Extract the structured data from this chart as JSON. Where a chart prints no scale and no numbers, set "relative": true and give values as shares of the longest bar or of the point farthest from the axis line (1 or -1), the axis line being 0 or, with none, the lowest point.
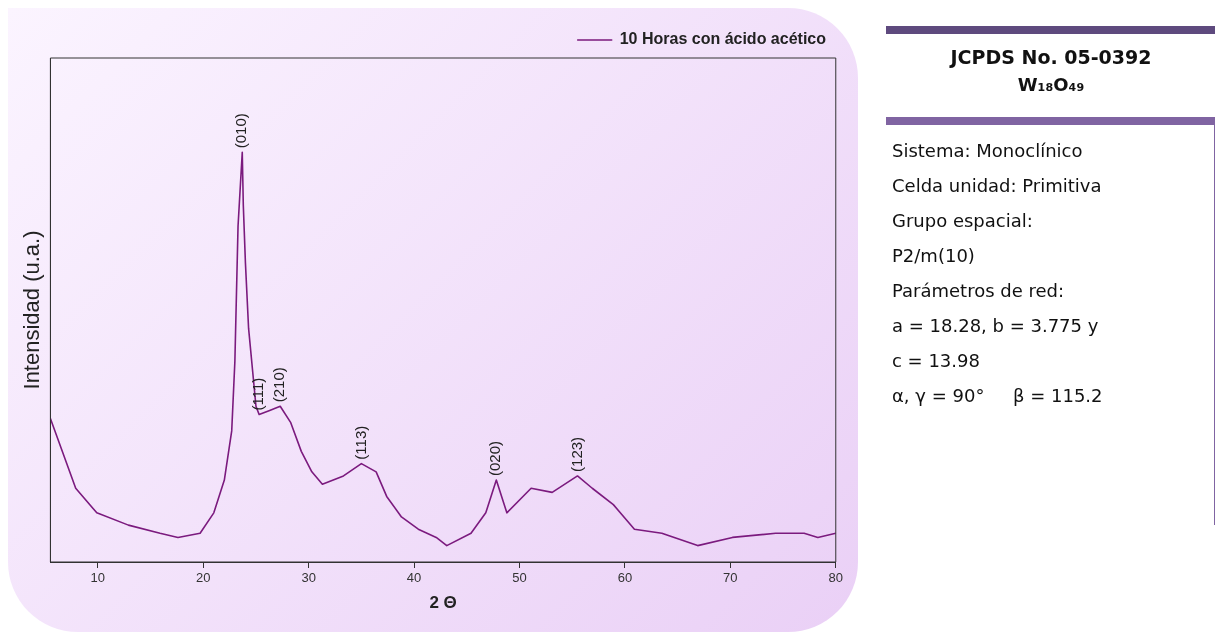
{
  "chart_data": [
    {
      "type": "line",
      "xlabel": "2 Θ",
      "ylabel": "Intensidad (u.a.)",
      "relative": true,
      "legend": "top right",
      "grid": false,
      "marker": "none",
      "line_style": "solid",
      "xlim": [
        5.5,
        80
      ],
      "xticks": [
        10,
        20,
        30,
        40,
        50,
        60,
        70,
        80
      ],
      "series": [
        {
          "name": "10 Horas con ácido acético",
          "color": "#7b1a7e",
          "x": [
            5.5,
            7.9,
            9.9,
            12.9,
            15.9,
            17.6,
            19.7,
            21.0,
            22.0,
            22.7,
            23.0,
            23.3,
            23.7,
            23.8,
            24.0,
            24.3,
            25.0,
            25.3,
            26.3,
            27.3,
            28.3,
            29.3,
            30.3,
            31.3,
            33.3,
            35.0,
            36.4,
            37.4,
            38.8,
            40.4,
            42.1,
            43.1,
            45.4,
            46.8,
            47.8,
            48.8,
            51.1,
            53.1,
            55.5,
            56.9,
            58.9,
            60.9,
            63.5,
            66.9,
            70.2,
            74.3,
            77.0,
            78.3,
            80
          ],
          "values": [
            0.35,
            0.18,
            0.12,
            0.09,
            0.07,
            0.06,
            0.07,
            0.12,
            0.2,
            0.32,
            0.49,
            0.82,
            1,
            0.87,
            0.73,
            0.57,
            0.38,
            0.36,
            0.37,
            0.38,
            0.34,
            0.27,
            0.22,
            0.19,
            0.21,
            0.24,
            0.22,
            0.16,
            0.11,
            0.08,
            0.06,
            0.04,
            0.07,
            0.12,
            0.2,
            0.12,
            0.18,
            0.17,
            0.21,
            0.18,
            0.14,
            0.08,
            0.07,
            0.04,
            0.06,
            0.07,
            0.07,
            0.06,
            0.07
          ]
        }
      ],
      "annotations": [
        {
          "text": "(010)",
          "x": 23.7,
          "y": 1
        },
        {
          "text": "(111)",
          "x": 25.3,
          "y": 0.36
        },
        {
          "text": "(210)",
          "x": 27.3,
          "y": 0.38
        },
        {
          "text": "(113)",
          "x": 35.0,
          "y": 0.24
        },
        {
          "text": "(020)",
          "x": 47.8,
          "y": 0.2
        },
        {
          "text": "(123)",
          "x": 55.5,
          "y": 0.21
        }
      ]
    },
    {
      "type": "other",
      "title": "JCPDS No. 05-0392",
      "subtitle": "W₁₈O₄₉",
      "annotations": [
        "Sistema: Monoclínico",
        "Celda unidad: Primitiva",
        "Grupo espacial:",
        "P2/m(10)",
        "Parámetros de red:",
        "a = 18.28, b = 3.775 y",
        "c = 13.98",
        "α, γ = 90°     β = 115.2"
      ]
    }
  ]
}
